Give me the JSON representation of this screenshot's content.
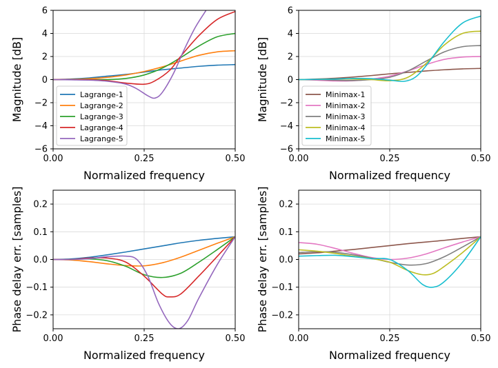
{
  "chart_data": [
    {
      "type": "line",
      "xlabel": "Normalized frequency",
      "ylabel": "Magnitude [dB]",
      "xlim": [
        0,
        0.5
      ],
      "ylim": [
        -6,
        6
      ],
      "xticks": [
        0,
        0.25,
        0.5
      ],
      "xtick_labels": [
        "0.00",
        "0.25",
        "0.50"
      ],
      "yticks": [
        -6,
        -4,
        -2,
        0,
        2,
        4,
        6
      ],
      "ytick_labels": [
        "−6",
        "−4",
        "−2",
        "0",
        "2",
        "4",
        "6"
      ],
      "grid": true,
      "legend": "lower-left",
      "series": [
        {
          "name": "Lagrange-1",
          "color": "#1f77b4",
          "x": [
            0,
            0.05,
            0.1,
            0.15,
            0.2,
            0.25,
            0.3,
            0.35,
            0.4,
            0.45,
            0.5
          ],
          "y": [
            0,
            0.05,
            0.15,
            0.3,
            0.45,
            0.65,
            0.85,
            1.0,
            1.15,
            1.25,
            1.3
          ]
        },
        {
          "name": "Lagrange-2",
          "color": "#ff7f0e",
          "x": [
            0,
            0.05,
            0.1,
            0.15,
            0.2,
            0.25,
            0.3,
            0.35,
            0.4,
            0.45,
            0.5
          ],
          "y": [
            0,
            0.02,
            0.08,
            0.2,
            0.4,
            0.7,
            1.1,
            1.6,
            2.1,
            2.4,
            2.5
          ]
        },
        {
          "name": "Lagrange-3",
          "color": "#2ca02c",
          "x": [
            0,
            0.05,
            0.1,
            0.15,
            0.2,
            0.25,
            0.3,
            0.35,
            0.4,
            0.45,
            0.5
          ],
          "y": [
            0,
            0.0,
            0.0,
            0.0,
            0.1,
            0.4,
            1.0,
            1.9,
            2.9,
            3.7,
            4.0
          ]
        },
        {
          "name": "Lagrange-4",
          "color": "#d62728",
          "x": [
            0,
            0.05,
            0.1,
            0.15,
            0.2,
            0.25,
            0.28,
            0.32,
            0.35,
            0.4,
            0.45,
            0.5
          ],
          "y": [
            0,
            0.0,
            -0.02,
            -0.1,
            -0.3,
            -0.4,
            -0.1,
            0.8,
            2.0,
            3.8,
            5.2,
            5.9
          ]
        },
        {
          "name": "Lagrange-5",
          "color": "#9467bd",
          "x": [
            0,
            0.05,
            0.1,
            0.15,
            0.2,
            0.23,
            0.26,
            0.28,
            0.3,
            0.33,
            0.36,
            0.39,
            0.42
          ],
          "y": [
            0,
            -0.02,
            -0.05,
            -0.15,
            -0.4,
            -0.8,
            -1.4,
            -1.6,
            -1.1,
            0.5,
            2.6,
            4.5,
            6.0
          ]
        }
      ]
    },
    {
      "type": "line",
      "xlabel": "Normalized frequency",
      "ylabel": "Magnitude [dB]",
      "xlim": [
        0,
        0.5
      ],
      "ylim": [
        -6,
        6
      ],
      "xticks": [
        0,
        0.25,
        0.5
      ],
      "xtick_labels": [
        "0.00",
        "0.25",
        "0.50"
      ],
      "yticks": [
        -6,
        -4,
        -2,
        0,
        2,
        4,
        6
      ],
      "ytick_labels": [
        "−6",
        "−4",
        "−2",
        "0",
        "2",
        "4",
        "6"
      ],
      "grid": true,
      "legend": "lower-left",
      "series": [
        {
          "name": "Minimax-1",
          "color": "#8c564b",
          "x": [
            0,
            0.05,
            0.1,
            0.15,
            0.2,
            0.25,
            0.3,
            0.35,
            0.4,
            0.45,
            0.5
          ],
          "y": [
            0,
            0.05,
            0.12,
            0.22,
            0.35,
            0.5,
            0.62,
            0.75,
            0.85,
            0.93,
            0.97
          ]
        },
        {
          "name": "Minimax-2",
          "color": "#e377c2",
          "x": [
            0,
            0.05,
            0.1,
            0.15,
            0.2,
            0.25,
            0.3,
            0.35,
            0.4,
            0.45,
            0.5
          ],
          "y": [
            0,
            -0.05,
            -0.12,
            -0.1,
            0.05,
            0.3,
            0.75,
            1.3,
            1.75,
            1.95,
            2.0
          ]
        },
        {
          "name": "Minimax-3",
          "color": "#7f7f7f",
          "x": [
            0,
            0.05,
            0.1,
            0.15,
            0.2,
            0.25,
            0.3,
            0.35,
            0.4,
            0.45,
            0.5
          ],
          "y": [
            0,
            0.0,
            -0.05,
            -0.08,
            0.0,
            0.2,
            0.75,
            1.6,
            2.4,
            2.85,
            2.95
          ]
        },
        {
          "name": "Minimax-4",
          "color": "#bcbd22",
          "x": [
            0,
            0.05,
            0.1,
            0.15,
            0.2,
            0.25,
            0.3,
            0.35,
            0.4,
            0.45,
            0.5
          ],
          "y": [
            0,
            0.02,
            0.05,
            0.05,
            0.0,
            -0.1,
            0.2,
            1.4,
            3.0,
            4.0,
            4.2
          ]
        },
        {
          "name": "Minimax-5",
          "color": "#17becf",
          "x": [
            0,
            0.05,
            0.1,
            0.15,
            0.2,
            0.25,
            0.29,
            0.32,
            0.35,
            0.4,
            0.45,
            0.5
          ],
          "y": [
            0,
            0.02,
            0.05,
            0.1,
            0.08,
            -0.05,
            -0.15,
            0.2,
            1.2,
            3.3,
            4.9,
            5.5
          ]
        }
      ]
    },
    {
      "type": "line",
      "xlabel": "Normalized frequency",
      "ylabel": "Phase delay err. [samples]",
      "xlim": [
        0,
        0.5
      ],
      "ylim": [
        -0.25,
        0.25
      ],
      "xticks": [
        0,
        0.25,
        0.5
      ],
      "xtick_labels": [
        "0.00",
        "0.25",
        "0.50"
      ],
      "yticks": [
        -0.2,
        -0.1,
        0,
        0.1,
        0.2
      ],
      "ytick_labels": [
        "−0.2",
        "−0.1",
        "0.0",
        "0.1",
        "0.2"
      ],
      "grid": true,
      "series": [
        {
          "name": "Lagrange-1",
          "color": "#1f77b4",
          "x": [
            0,
            0.05,
            0.1,
            0.15,
            0.2,
            0.25,
            0.3,
            0.35,
            0.4,
            0.45,
            0.5
          ],
          "y": [
            0,
            0.002,
            0.008,
            0.017,
            0.027,
            0.038,
            0.049,
            0.06,
            0.069,
            0.076,
            0.082
          ]
        },
        {
          "name": "Lagrange-2",
          "color": "#ff7f0e",
          "x": [
            0,
            0.05,
            0.1,
            0.15,
            0.2,
            0.25,
            0.3,
            0.35,
            0.4,
            0.45,
            0.5
          ],
          "y": [
            0,
            -0.002,
            -0.008,
            -0.016,
            -0.022,
            -0.023,
            -0.012,
            0.008,
            0.033,
            0.058,
            0.082
          ]
        },
        {
          "name": "Lagrange-3",
          "color": "#2ca02c",
          "x": [
            0,
            0.05,
            0.1,
            0.15,
            0.2,
            0.25,
            0.3,
            0.35,
            0.4,
            0.45,
            0.5
          ],
          "y": [
            0,
            0.0,
            0.002,
            -0.005,
            -0.025,
            -0.055,
            -0.065,
            -0.05,
            -0.01,
            0.035,
            0.082
          ]
        },
        {
          "name": "Lagrange-4",
          "color": "#d62728",
          "x": [
            0,
            0.05,
            0.1,
            0.15,
            0.2,
            0.25,
            0.3,
            0.32,
            0.35,
            0.4,
            0.45,
            0.5
          ],
          "y": [
            0,
            0.0,
            0.005,
            0.005,
            -0.01,
            -0.06,
            -0.125,
            -0.135,
            -0.125,
            -0.06,
            0.01,
            0.082
          ]
        },
        {
          "name": "Lagrange-5",
          "color": "#9467bd",
          "x": [
            0,
            0.05,
            0.1,
            0.15,
            0.2,
            0.23,
            0.26,
            0.29,
            0.32,
            0.345,
            0.37,
            0.4,
            0.45,
            0.5
          ],
          "y": [
            0,
            0.0,
            0.003,
            0.01,
            0.012,
            0.0,
            -0.06,
            -0.16,
            -0.23,
            -0.25,
            -0.22,
            -0.14,
            -0.02,
            0.082
          ]
        }
      ]
    },
    {
      "type": "line",
      "xlabel": "Normalized frequency",
      "ylabel": "Phase delay err. [samples]",
      "xlim": [
        0,
        0.5
      ],
      "ylim": [
        -0.25,
        0.25
      ],
      "xticks": [
        0,
        0.25,
        0.5
      ],
      "xtick_labels": [
        "0.00",
        "0.25",
        "0.50"
      ],
      "yticks": [
        -0.2,
        -0.1,
        0,
        0.1,
        0.2
      ],
      "ytick_labels": [
        "−0.2",
        "−0.1",
        "0.0",
        "0.1",
        "0.2"
      ],
      "grid": true,
      "series": [
        {
          "name": "Minimax-1",
          "color": "#8c564b",
          "x": [
            0,
            0.05,
            0.1,
            0.15,
            0.2,
            0.25,
            0.3,
            0.35,
            0.4,
            0.45,
            0.5
          ],
          "y": [
            0.02,
            0.024,
            0.03,
            0.036,
            0.043,
            0.05,
            0.057,
            0.063,
            0.069,
            0.076,
            0.082
          ]
        },
        {
          "name": "Minimax-2",
          "color": "#e377c2",
          "x": [
            0,
            0.05,
            0.1,
            0.15,
            0.2,
            0.25,
            0.3,
            0.35,
            0.4,
            0.45,
            0.5
          ],
          "y": [
            0.061,
            0.055,
            0.04,
            0.022,
            0.007,
            0.0,
            0.005,
            0.02,
            0.042,
            0.063,
            0.082
          ]
        },
        {
          "name": "Minimax-3",
          "color": "#7f7f7f",
          "x": [
            0,
            0.05,
            0.1,
            0.15,
            0.2,
            0.25,
            0.3,
            0.35,
            0.4,
            0.45,
            0.5
          ],
          "y": [
            0.025,
            0.028,
            0.026,
            0.017,
            0.005,
            -0.01,
            -0.02,
            -0.015,
            0.01,
            0.045,
            0.082
          ]
        },
        {
          "name": "Minimax-4",
          "color": "#bcbd22",
          "x": [
            0,
            0.05,
            0.1,
            0.15,
            0.2,
            0.25,
            0.3,
            0.34,
            0.37,
            0.4,
            0.45,
            0.5
          ],
          "y": [
            0.035,
            0.03,
            0.022,
            0.012,
            0.003,
            -0.01,
            -0.04,
            -0.055,
            -0.05,
            -0.025,
            0.025,
            0.082
          ]
        },
        {
          "name": "Minimax-5",
          "color": "#17becf",
          "x": [
            0,
            0.05,
            0.1,
            0.15,
            0.2,
            0.25,
            0.3,
            0.34,
            0.37,
            0.4,
            0.45,
            0.5
          ],
          "y": [
            0.012,
            0.014,
            0.015,
            0.01,
            0.003,
            0.0,
            -0.04,
            -0.09,
            -0.1,
            -0.08,
            -0.01,
            0.082
          ]
        }
      ]
    }
  ]
}
